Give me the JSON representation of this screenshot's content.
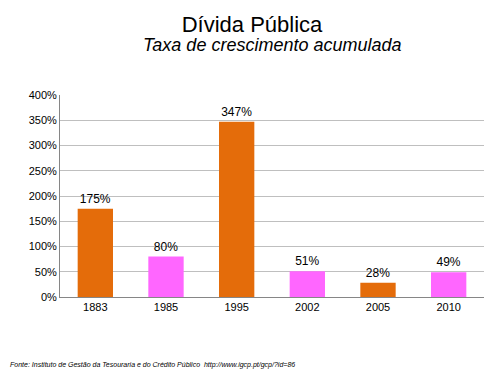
{
  "chart_data": {
    "type": "bar",
    "title": "Dívida Pública",
    "subtitle": "Taxa de crescimento acumulada",
    "source": "Fonte: Instituto de Gestão da Tesouraria e do Crédito Público  http://www.igcp.pt/gcp/?id=86",
    "categories": [
      "1883",
      "1985",
      "1995",
      "2002",
      "2005",
      "2010"
    ],
    "values": [
      175,
      80,
      347,
      51,
      28,
      49
    ],
    "value_labels": [
      "175%",
      "80%",
      "347%",
      "51%",
      "28%",
      "49%"
    ],
    "colors": [
      "#e46c0a",
      "#ff66ff",
      "#e46c0a",
      "#ff66ff",
      "#e46c0a",
      "#ff66ff"
    ],
    "data_labels": true,
    "ylim": [
      0,
      400
    ],
    "yticks": [
      {
        "value": 0,
        "label": "0%"
      },
      {
        "value": 50,
        "label": "50%"
      },
      {
        "value": 100,
        "label": "100%"
      },
      {
        "value": 150,
        "label": "150%"
      },
      {
        "value": 200,
        "label": "200%"
      },
      {
        "value": 250,
        "label": "250%"
      },
      {
        "value": 300,
        "label": "300%"
      },
      {
        "value": 350,
        "label": "350%"
      },
      {
        "value": 400,
        "label": "400%"
      }
    ],
    "grid": true
  }
}
